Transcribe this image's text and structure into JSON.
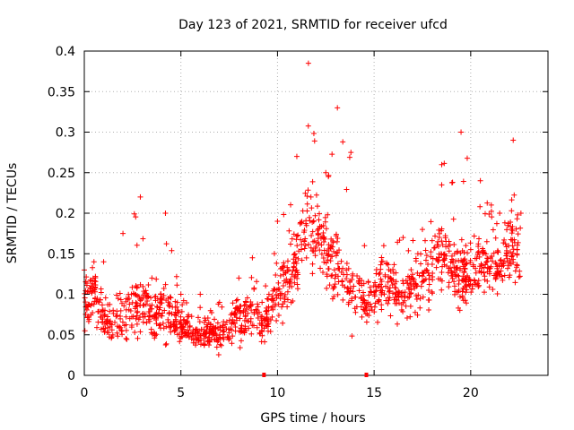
{
  "chart_data": {
    "type": "scatter",
    "title": "Day 123 of 2021, SRMTID for receiver ufcd",
    "xlabel": "GPS time / hours",
    "ylabel": "SRMTID / TECUs",
    "xlim": [
      0,
      24
    ],
    "ylim": [
      0,
      0.4
    ],
    "x_ticks": [
      0,
      5,
      10,
      15,
      20
    ],
    "x_tick_labels": [
      "0",
      "5",
      "10",
      "15",
      "20"
    ],
    "y_ticks": [
      0,
      0.05,
      0.1,
      0.15,
      0.2,
      0.25,
      0.3,
      0.35,
      0.4
    ],
    "y_tick_labels": [
      "0",
      "0.05",
      "0.1",
      "0.15",
      "0.2",
      "0.25",
      "0.3",
      "0.35",
      "0.4"
    ],
    "grid": true,
    "marker": "+",
    "colors": {
      "series": "#ff0000",
      "axis": "#000000",
      "grid": "#b0b0b0"
    },
    "gap_markers_x": [
      9.3,
      14.6
    ],
    "series": [
      {
        "name": "SRMTID",
        "x_range": [
          0.0,
          22.6
        ],
        "y_range": [
          0.02,
          0.385
        ],
        "envelope": [
          {
            "x": 0.0,
            "median": 0.085,
            "spread": 0.03,
            "max": 0.13
          },
          {
            "x": 0.5,
            "median": 0.105,
            "spread": 0.035,
            "max": 0.14
          },
          {
            "x": 1.0,
            "median": 0.065,
            "spread": 0.025,
            "max": 0.14
          },
          {
            "x": 2.0,
            "median": 0.07,
            "spread": 0.025,
            "max": 0.175
          },
          {
            "x": 2.9,
            "median": 0.09,
            "spread": 0.04,
            "max": 0.22
          },
          {
            "x": 3.5,
            "median": 0.075,
            "spread": 0.03,
            "max": 0.12
          },
          {
            "x": 4.2,
            "median": 0.085,
            "spread": 0.035,
            "max": 0.2
          },
          {
            "x": 5.0,
            "median": 0.06,
            "spread": 0.02,
            "max": 0.1
          },
          {
            "x": 6.0,
            "median": 0.055,
            "spread": 0.02,
            "max": 0.1
          },
          {
            "x": 7.0,
            "median": 0.05,
            "spread": 0.02,
            "max": 0.09
          },
          {
            "x": 8.0,
            "median": 0.07,
            "spread": 0.025,
            "max": 0.12
          },
          {
            "x": 8.7,
            "median": 0.08,
            "spread": 0.03,
            "max": 0.145
          },
          {
            "x": 9.2,
            "median": 0.06,
            "spread": 0.02,
            "max": 0.09
          },
          {
            "x": 10.0,
            "median": 0.1,
            "spread": 0.035,
            "max": 0.19
          },
          {
            "x": 11.0,
            "median": 0.14,
            "spread": 0.04,
            "max": 0.27
          },
          {
            "x": 11.6,
            "median": 0.19,
            "spread": 0.05,
            "max": 0.385
          },
          {
            "x": 12.5,
            "median": 0.15,
            "spread": 0.04,
            "max": 0.25
          },
          {
            "x": 13.1,
            "median": 0.13,
            "spread": 0.045,
            "max": 0.33
          },
          {
            "x": 13.8,
            "median": 0.11,
            "spread": 0.04,
            "max": 0.275
          },
          {
            "x": 14.5,
            "median": 0.09,
            "spread": 0.03,
            "max": 0.16
          },
          {
            "x": 15.5,
            "median": 0.11,
            "spread": 0.03,
            "max": 0.16
          },
          {
            "x": 16.5,
            "median": 0.1,
            "spread": 0.03,
            "max": 0.17
          },
          {
            "x": 17.5,
            "median": 0.12,
            "spread": 0.035,
            "max": 0.18
          },
          {
            "x": 18.5,
            "median": 0.145,
            "spread": 0.04,
            "max": 0.26
          },
          {
            "x": 19.5,
            "median": 0.12,
            "spread": 0.04,
            "max": 0.3
          },
          {
            "x": 20.5,
            "median": 0.14,
            "spread": 0.035,
            "max": 0.24
          },
          {
            "x": 21.5,
            "median": 0.13,
            "spread": 0.035,
            "max": 0.2
          },
          {
            "x": 22.2,
            "median": 0.17,
            "spread": 0.045,
            "max": 0.29
          },
          {
            "x": 22.6,
            "median": 0.13,
            "spread": 0.03,
            "max": 0.2
          }
        ]
      }
    ]
  }
}
